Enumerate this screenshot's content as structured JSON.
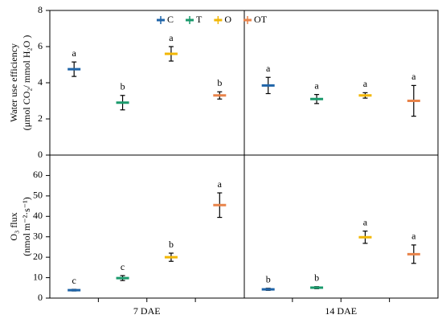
{
  "chart_data": [
    {
      "type": "errorbar",
      "ylabel": [
        "Water use efficiency",
        "(μmol CO₂/ mmol H₂O )"
      ],
      "ylim": [
        0,
        8
      ],
      "yticks": [
        0,
        2,
        4,
        6,
        8
      ],
      "legend": "top",
      "series": [
        {
          "name": "C",
          "color": "#1f64a8",
          "values": [
            4.75,
            3.85
          ],
          "errors": [
            0.4,
            0.45
          ],
          "letters": [
            "a",
            "a"
          ]
        },
        {
          "name": "T",
          "color": "#1a9a6c",
          "values": [
            2.9,
            3.1
          ],
          "errors": [
            0.4,
            0.25
          ],
          "letters": [
            "b",
            "a"
          ]
        },
        {
          "name": "O",
          "color": "#f2b705",
          "values": [
            5.6,
            3.3
          ],
          "errors": [
            0.4,
            0.15
          ],
          "letters": [
            "a",
            "a"
          ]
        },
        {
          "name": "OT",
          "color": "#e8834a",
          "values": [
            3.3,
            3.0
          ],
          "errors": [
            0.2,
            0.85
          ],
          "letters": [
            "b",
            "a"
          ]
        }
      ]
    },
    {
      "type": "errorbar",
      "ylabel": [
        "O₃ flux",
        "(nmol m⁻²·s⁻¹)"
      ],
      "ylim": [
        0,
        70
      ],
      "yticks": [
        0,
        10,
        20,
        30,
        40,
        50,
        60
      ],
      "categories": [
        "7 DAE",
        "14 DAE"
      ],
      "series": [
        {
          "color": "#1f64a8",
          "values": [
            3.9,
            4.3
          ],
          "errors": [
            0.4,
            0.5
          ],
          "letters": [
            "c",
            "b"
          ]
        },
        {
          "color": "#1a9a6c",
          "values": [
            9.8,
            5.1
          ],
          "errors": [
            1.2,
            0.5
          ],
          "letters": [
            "c",
            "b"
          ]
        },
        {
          "color": "#f2b705",
          "values": [
            20,
            29.8
          ],
          "errors": [
            2,
            3
          ],
          "letters": [
            "b",
            "a"
          ]
        },
        {
          "color": "#e8834a",
          "values": [
            45.5,
            21.5
          ],
          "errors": [
            6,
            4.5
          ],
          "letters": [
            "a",
            "a"
          ]
        }
      ]
    }
  ]
}
